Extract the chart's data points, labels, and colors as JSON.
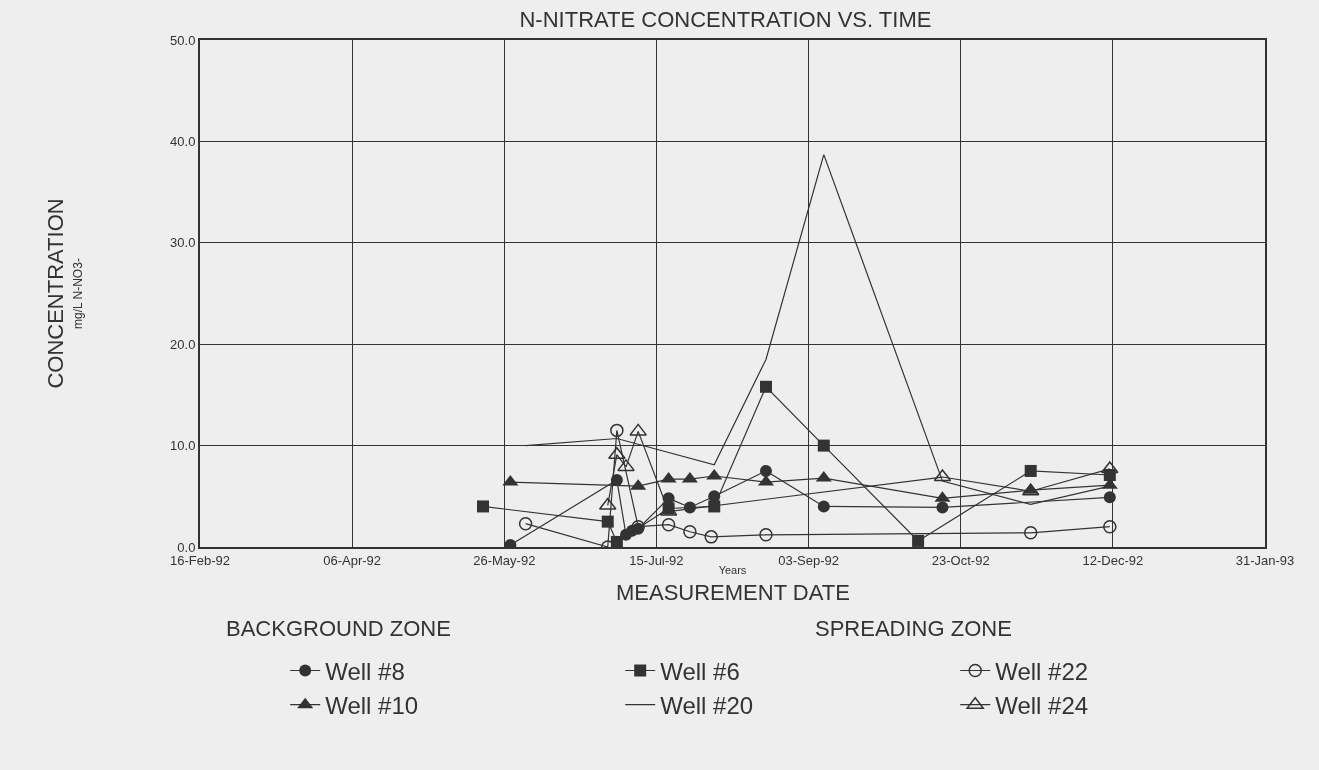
{
  "chart_data": {
    "type": "line",
    "title": "N-NITRATE CONCENTRATION VS. TIME",
    "xlabel": "Years",
    "ylabel": "CONCENTRATION",
    "annotations": [
      "mg/L N-NO3-",
      "MEASUREMENT DATE",
      "BACKGROUND ZONE",
      "SPREADING ZONE"
    ],
    "xlim": [
      "1992-02-16",
      "1993-01-31"
    ],
    "xticks": [
      {
        "value": "1992-02-16",
        "label": "16-Feb-92"
      },
      {
        "value": "1992-04-06",
        "label": "06-Apr-92"
      },
      {
        "value": "1992-05-26",
        "label": "26-May-92"
      },
      {
        "value": "1992-07-15",
        "label": "15-Jul-92"
      },
      {
        "value": "1992-09-03",
        "label": "03-Sep-92"
      },
      {
        "value": "1992-10-23",
        "label": "23-Oct-92"
      },
      {
        "value": "1992-12-12",
        "label": "12-Dec-92"
      },
      {
        "value": "1993-01-31",
        "label": "31-Jan-93"
      }
    ],
    "ylim": [
      0,
      50
    ],
    "yticks": [
      {
        "value": 0,
        "label": "0.0"
      },
      {
        "value": 10,
        "label": "10.0"
      },
      {
        "value": 20,
        "label": "20.0"
      },
      {
        "value": 30,
        "label": "30.0"
      },
      {
        "value": 40,
        "label": "40.0"
      },
      {
        "value": 50,
        "label": "50.0"
      }
    ],
    "grid": true,
    "legend": "bottom",
    "series": [
      {
        "name": "Well #8",
        "color": "#333333",
        "marker": "circle",
        "x": [
          "1992-05-28",
          "1992-07-02",
          "1992-07-05",
          "1992-07-07",
          "1992-07-09",
          "1992-07-19",
          "1992-07-26",
          "1992-08-03",
          "1992-08-20",
          "1992-09-08",
          "1992-10-17",
          "1992-12-11"
        ],
        "values": [
          0.2,
          6.6,
          1.2,
          1.6,
          1.8,
          4.8,
          3.9,
          5.0,
          7.5,
          4.0,
          3.9,
          4.9
        ]
      },
      {
        "name": "Well #6",
        "color": "#333333",
        "marker": "square",
        "x": [
          "1992-05-19",
          "1992-06-29",
          "1992-07-02",
          "1992-07-19",
          "1992-08-03",
          "1992-08-20",
          "1992-09-08",
          "1992-10-09",
          "1992-11-15",
          "1992-12-11"
        ],
        "values": [
          4.0,
          2.5,
          0.5,
          3.8,
          4.0,
          15.8,
          10.0,
          0.6,
          7.5,
          7.1
        ]
      },
      {
        "name": "Well #22",
        "color": "#333333",
        "marker": "circle-open",
        "x": [
          "1992-06-02",
          "1992-06-29",
          "1992-07-02",
          "1992-07-09",
          "1992-07-19",
          "1992-07-26",
          "1992-08-02",
          "1992-08-20",
          "1992-11-15",
          "1992-12-11"
        ],
        "values": [
          2.3,
          0.0,
          11.5,
          2.0,
          2.2,
          1.5,
          1.0,
          1.2,
          1.4,
          2.0
        ]
      },
      {
        "name": "Well #10",
        "color": "#333333",
        "marker": "triangle",
        "x": [
          "1992-05-28",
          "1992-07-09",
          "1992-07-19",
          "1992-07-26",
          "1992-08-03",
          "1992-08-20",
          "1992-09-08",
          "1992-10-17",
          "1992-11-15",
          "1992-12-11"
        ],
        "values": [
          6.4,
          6.0,
          6.7,
          6.7,
          7.0,
          6.4,
          6.8,
          4.8,
          5.6,
          6.1
        ]
      },
      {
        "name": "Well #20",
        "color": "#333333",
        "marker": "none",
        "x": [
          "1992-06-02",
          "1992-07-02",
          "1992-08-03",
          "1992-08-20",
          "1992-09-08",
          "1992-10-17",
          "1992-11-15",
          "1992-12-11"
        ],
        "values": [
          10.0,
          10.7,
          8.1,
          18.5,
          38.7,
          6.5,
          4.2,
          6.0
        ]
      },
      {
        "name": "Well #24",
        "color": "#333333",
        "marker": "triangle-open",
        "x": [
          "1992-06-29",
          "1992-07-02",
          "1992-07-05",
          "1992-07-09",
          "1992-07-19",
          "1992-10-17",
          "1992-11-15",
          "1992-12-11"
        ],
        "values": [
          4.1,
          9.1,
          7.9,
          11.4,
          3.5,
          6.9,
          5.5,
          7.7
        ]
      }
    ]
  }
}
